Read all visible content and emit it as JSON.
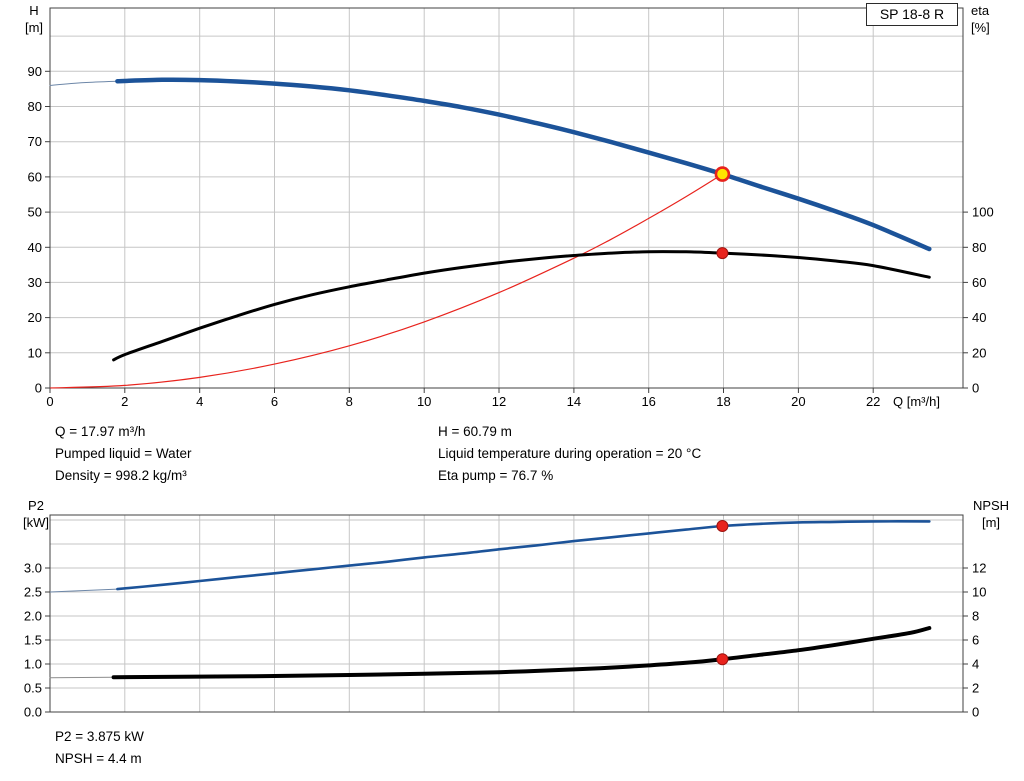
{
  "title_box": {
    "label": "SP 18-8 R"
  },
  "colors": {
    "curve_blue": "#1c5399",
    "curve_blue_lead": "#6d87a8",
    "curve_black": "#000000",
    "curve_gray_lead": "#8c8c8c",
    "curve_red": "#e8231d",
    "marker_red": "#e8231d",
    "marker_red_stroke": "#9e1410",
    "marker_yellow": "#ffe500",
    "grid": "#c6c6c6",
    "axis": "#404040",
    "text": "#000000"
  },
  "annotations_top": {
    "col1": [
      "Q = 17.97 m³/h",
      "Pumped liquid = Water",
      "Density = 998.2 kg/m³"
    ],
    "col2": [
      "H = 60.79 m",
      "Liquid temperature during operation = 20 °C",
      "Eta pump = 76.7 %"
    ]
  },
  "annotations_bottom": [
    "P2 = 3.875 kW",
    "NPSH = 4.4 m"
  ],
  "chart_data": [
    {
      "type": "line",
      "title": "SP 18-8 R",
      "x_axis": {
        "label": "Q [m³/h]",
        "min": 0,
        "max": 24.4,
        "tick_values": [
          0,
          2,
          4,
          6,
          8,
          10,
          12,
          14,
          16,
          18,
          20,
          22
        ],
        "tick_labels": [
          "0",
          "2",
          "4",
          "6",
          "8",
          "10",
          "12",
          "14",
          "16",
          "18",
          "20",
          "22"
        ]
      },
      "left_axis": {
        "title": "H",
        "unit": "[m]",
        "min": 0,
        "max": 108,
        "tick_values": [
          0,
          10,
          20,
          30,
          40,
          50,
          60,
          70,
          80,
          90
        ],
        "tick_labels": [
          "0",
          "10",
          "20",
          "30",
          "40",
          "50",
          "60",
          "70",
          "80",
          "90"
        ],
        "grid_values": [
          10,
          20,
          30,
          40,
          50,
          60,
          70,
          80,
          90,
          100
        ]
      },
      "right_axis": {
        "title": "eta",
        "unit": "[%]",
        "min": 0,
        "max": 216,
        "tick_values": [
          0,
          20,
          40,
          60,
          80,
          100
        ],
        "tick_labels": [
          "0",
          "20",
          "40",
          "60",
          "80",
          "100"
        ]
      },
      "series": [
        {
          "name": "head-curve-lead",
          "axis": "left",
          "color": "#6d87a8",
          "width": 1,
          "points": [
            [
              0,
              86
            ],
            [
              0.9,
              86.8
            ],
            [
              1.8,
              87.2
            ]
          ]
        },
        {
          "name": "system-curve",
          "axis": "left",
          "color": "#e8231d",
          "width": 1.2,
          "points": [
            [
              0,
              0
            ],
            [
              2,
              0.75
            ],
            [
              4,
              3.0
            ],
            [
              6,
              6.8
            ],
            [
              8,
              12.0
            ],
            [
              10,
              18.8
            ],
            [
              12,
              27.1
            ],
            [
              14,
              36.9
            ],
            [
              15,
              42.3
            ],
            [
              16,
              48.2
            ],
            [
              17,
              54.4
            ],
            [
              17.97,
              60.79
            ]
          ]
        },
        {
          "name": "head-curve",
          "axis": "left",
          "color": "#1c5399",
          "width": 4.5,
          "points": [
            [
              1.8,
              87.2
            ],
            [
              3,
              87.6
            ],
            [
              4,
              87.5
            ],
            [
              5,
              87.1
            ],
            [
              6,
              86.5
            ],
            [
              7,
              85.7
            ],
            [
              8,
              84.6
            ],
            [
              9,
              83.2
            ],
            [
              10,
              81.6
            ],
            [
              11,
              79.8
            ],
            [
              12,
              77.7
            ],
            [
              13,
              75.3
            ],
            [
              14,
              72.7
            ],
            [
              15,
              69.9
            ],
            [
              16,
              66.9
            ],
            [
              17,
              63.9
            ],
            [
              17.97,
              60.79
            ],
            [
              19,
              57.2
            ],
            [
              20,
              53.8
            ],
            [
              21,
              50.2
            ],
            [
              22,
              46.3
            ],
            [
              23.5,
              39.5
            ]
          ]
        },
        {
          "name": "efficiency-curve",
          "axis": "right",
          "color": "#000000",
          "width": 3,
          "points": [
            [
              1.7,
              16
            ],
            [
              2,
              19
            ],
            [
              3,
              26.5
            ],
            [
              4,
              34
            ],
            [
              5,
              41
            ],
            [
              6,
              47.5
            ],
            [
              7,
              53
            ],
            [
              8,
              57.5
            ],
            [
              9,
              61.5
            ],
            [
              10,
              65.3
            ],
            [
              11,
              68.5
            ],
            [
              12,
              71.2
            ],
            [
              13,
              73.5
            ],
            [
              14,
              75.3
            ],
            [
              15,
              76.7
            ],
            [
              16,
              77.5
            ],
            [
              17,
              77.4
            ],
            [
              17.97,
              76.7
            ],
            [
              19,
              75.6
            ],
            [
              20,
              74.2
            ],
            [
              21,
              72.2
            ],
            [
              22,
              69.6
            ],
            [
              23.5,
              63
            ]
          ]
        }
      ],
      "markers": [
        {
          "name": "duty-point-eta",
          "axis": "right",
          "q": 17.97,
          "value": 76.7,
          "fill": "#e8231d",
          "stroke": "#9e1410",
          "r": 5.5,
          "stroke_width": 1
        },
        {
          "name": "duty-point-head",
          "axis": "left",
          "q": 17.97,
          "value": 60.79,
          "fill": "#ffe500",
          "stroke": "#e8231d",
          "r": 6.5,
          "stroke_width": 2.6
        }
      ]
    },
    {
      "type": "line",
      "title": "",
      "x_axis": {
        "label": "",
        "min": 0,
        "max": 24.4,
        "tick_values": [
          0,
          2,
          4,
          6,
          8,
          10,
          12,
          14,
          16,
          18,
          20,
          22
        ],
        "tick_labels": []
      },
      "left_axis": {
        "title": "P2",
        "unit": "[kW]",
        "min": 0,
        "max": 4.104,
        "tick_values": [
          0,
          0.5,
          1,
          1.5,
          2,
          2.5,
          3
        ],
        "tick_labels": [
          "0.0",
          "0.5",
          "1.0",
          "1.5",
          "2.0",
          "2.5",
          "3.0"
        ],
        "grid_values": [
          0.5,
          1,
          1.5,
          2,
          2.5,
          3,
          3.5,
          4
        ]
      },
      "right_axis": {
        "title": "NPSH",
        "unit": "[m]",
        "min": 0,
        "max": 16.42,
        "tick_values": [
          0,
          2,
          4,
          6,
          8,
          10,
          12
        ],
        "tick_labels": [
          "0",
          "2",
          "4",
          "6",
          "8",
          "10",
          "12"
        ]
      },
      "series": [
        {
          "name": "p2-curve-lead",
          "axis": "left",
          "color": "#6d87a8",
          "width": 1,
          "points": [
            [
              0,
              2.5
            ],
            [
              1.8,
              2.56
            ]
          ]
        },
        {
          "name": "npsh-curve-lead",
          "axis": "right",
          "color": "#8c8c8c",
          "width": 1,
          "points": [
            [
              0,
              2.85
            ],
            [
              1.7,
              2.9
            ]
          ]
        },
        {
          "name": "p2-curve",
          "axis": "left",
          "color": "#1c5399",
          "width": 2.6,
          "points": [
            [
              1.8,
              2.56
            ],
            [
              3,
              2.65
            ],
            [
              4,
              2.73
            ],
            [
              5,
              2.81
            ],
            [
              6,
              2.89
            ],
            [
              7,
              2.97
            ],
            [
              8,
              3.05
            ],
            [
              9,
              3.13
            ],
            [
              10,
              3.22
            ],
            [
              11,
              3.3
            ],
            [
              12,
              3.39
            ],
            [
              13,
              3.47
            ],
            [
              14,
              3.56
            ],
            [
              15,
              3.64
            ],
            [
              16,
              3.72
            ],
            [
              17,
              3.8
            ],
            [
              17.97,
              3.875
            ],
            [
              19,
              3.92
            ],
            [
              20,
              3.95
            ],
            [
              21,
              3.96
            ],
            [
              22,
              3.97
            ],
            [
              23.5,
              3.97
            ]
          ]
        },
        {
          "name": "npsh-curve",
          "axis": "right",
          "color": "#000000",
          "width": 4,
          "points": [
            [
              1.7,
              2.9
            ],
            [
              4,
              2.95
            ],
            [
              6,
              3.0
            ],
            [
              8,
              3.08
            ],
            [
              10,
              3.18
            ],
            [
              12,
              3.32
            ],
            [
              14,
              3.55
            ],
            [
              15,
              3.7
            ],
            [
              16,
              3.88
            ],
            [
              17,
              4.1
            ],
            [
              17.97,
              4.4
            ],
            [
              19,
              4.78
            ],
            [
              20,
              5.15
            ],
            [
              21,
              5.6
            ],
            [
              22,
              6.1
            ],
            [
              23,
              6.6
            ],
            [
              23.5,
              7.0
            ]
          ]
        }
      ],
      "markers": [
        {
          "name": "duty-point-p2",
          "axis": "left",
          "q": 17.97,
          "value": 3.875,
          "fill": "#e8231d",
          "stroke": "#9e1410",
          "r": 5.5,
          "stroke_width": 1
        },
        {
          "name": "duty-point-npsh",
          "axis": "right",
          "q": 17.97,
          "value": 4.4,
          "fill": "#e8231d",
          "stroke": "#9e1410",
          "r": 5.5,
          "stroke_width": 1
        }
      ]
    }
  ]
}
